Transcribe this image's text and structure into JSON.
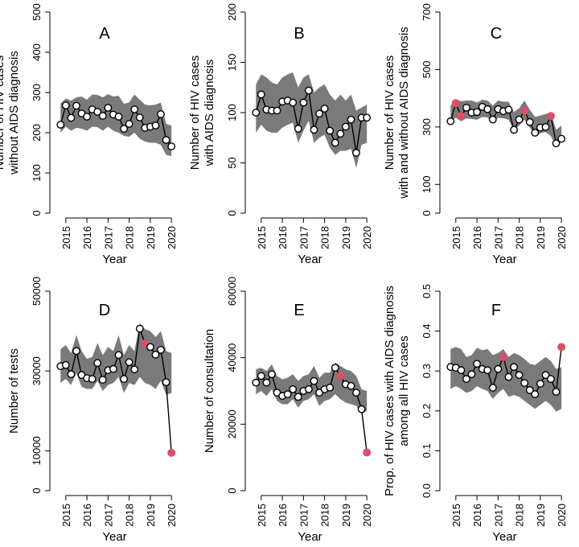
{
  "chart_data": [
    {
      "type": "line",
      "panel": "A",
      "ylabel": [
        "Number of HIV cases",
        "without AIDS diagnosis"
      ],
      "xlabel": "Year",
      "ylim": [
        0,
        500
      ],
      "yticks": [
        0,
        100,
        200,
        300,
        400,
        500
      ],
      "xticks": [
        2015,
        2016,
        2017,
        2018,
        2019,
        2020
      ],
      "x": [
        2014.75,
        2015.0,
        2015.25,
        2015.5,
        2015.75,
        2016.0,
        2016.25,
        2016.5,
        2016.75,
        2017.0,
        2017.25,
        2017.5,
        2017.75,
        2018.0,
        2018.25,
        2018.5,
        2018.75,
        2019.0,
        2019.25,
        2019.5,
        2019.75,
        2020.0
      ],
      "values": [
        220,
        268,
        237,
        267,
        248,
        240,
        258,
        252,
        242,
        262,
        245,
        240,
        210,
        222,
        258,
        238,
        212,
        215,
        218,
        246,
        182,
        166
      ],
      "band_upper": [
        272,
        285,
        280,
        288,
        290,
        282,
        295,
        294,
        288,
        296,
        290,
        292,
        272,
        275,
        295,
        282,
        270,
        268,
        270,
        275,
        222,
        218
      ],
      "band_lower": [
        200,
        215,
        205,
        212,
        210,
        205,
        215,
        214,
        205,
        215,
        205,
        200,
        192,
        190,
        200,
        185,
        178,
        175,
        175,
        170,
        145,
        142
      ],
      "highlight_x": []
    },
    {
      "type": "line",
      "panel": "B",
      "ylabel": [
        "Number of HIV cases",
        "with AIDS diagnosis"
      ],
      "xlabel": "Year",
      "ylim": [
        0,
        200
      ],
      "yticks": [
        0,
        50,
        100,
        150,
        200
      ],
      "xticks": [
        2015,
        2016,
        2017,
        2018,
        2019,
        2020
      ],
      "x": [
        2014.75,
        2015.0,
        2015.25,
        2015.5,
        2015.75,
        2016.0,
        2016.25,
        2016.5,
        2016.75,
        2017.0,
        2017.25,
        2017.5,
        2017.75,
        2018.0,
        2018.25,
        2018.5,
        2018.75,
        2019.0,
        2019.25,
        2019.5,
        2019.75,
        2020.0
      ],
      "values": [
        100,
        118,
        103,
        102,
        102,
        111,
        112,
        110,
        84,
        110,
        122,
        83,
        99,
        104,
        82,
        70,
        79,
        86,
        93,
        60,
        95,
        95
      ],
      "band_upper": [
        128,
        138,
        135,
        130,
        128,
        135,
        138,
        140,
        125,
        135,
        138,
        120,
        125,
        128,
        118,
        112,
        118,
        112,
        118,
        102,
        105,
        108
      ],
      "band_lower": [
        80,
        88,
        82,
        80,
        80,
        85,
        88,
        90,
        70,
        82,
        92,
        70,
        75,
        78,
        65,
        58,
        62,
        62,
        64,
        45,
        68,
        70
      ],
      "highlight_x": []
    },
    {
      "type": "line",
      "panel": "C",
      "ylabel": [
        "Number of HIV cases",
        "with and without AIDS diagnosis"
      ],
      "xlabel": "Year",
      "ylim": [
        0,
        700
      ],
      "yticks": [
        0,
        100,
        300,
        500,
        700
      ],
      "xticks": [
        2015,
        2016,
        2017,
        2018,
        2019,
        2020
      ],
      "x": [
        2014.75,
        2015.0,
        2015.25,
        2015.5,
        2015.75,
        2016.0,
        2016.25,
        2016.5,
        2016.75,
        2017.0,
        2017.25,
        2017.5,
        2017.75,
        2018.0,
        2018.25,
        2018.5,
        2018.75,
        2019.0,
        2019.25,
        2019.5,
        2019.75,
        2020.0
      ],
      "values": [
        320,
        383,
        338,
        367,
        350,
        352,
        370,
        362,
        326,
        362,
        355,
        360,
        290,
        326,
        357,
        317,
        280,
        298,
        300,
        338,
        243,
        259
      ],
      "band_upper": [
        375,
        395,
        390,
        392,
        392,
        385,
        395,
        392,
        375,
        392,
        388,
        388,
        352,
        365,
        392,
        360,
        335,
        340,
        345,
        350,
        290,
        305
      ],
      "band_lower": [
        318,
        332,
        320,
        330,
        328,
        325,
        335,
        333,
        315,
        332,
        330,
        325,
        288,
        305,
        325,
        298,
        270,
        278,
        282,
        268,
        232,
        250
      ],
      "highlight_x": [
        2015.0,
        2015.25,
        2018.25,
        2019.5
      ]
    },
    {
      "type": "line",
      "panel": "D",
      "ylabel": [
        "Number of tests"
      ],
      "xlabel": "Year",
      "ylim": [
        0,
        50000
      ],
      "yticks": [
        0,
        10000,
        30000,
        50000
      ],
      "xticks": [
        2015,
        2016,
        2017,
        2018,
        2019,
        2020
      ],
      "x": [
        2014.75,
        2015.0,
        2015.25,
        2015.5,
        2015.75,
        2016.0,
        2016.25,
        2016.5,
        2016.75,
        2017.0,
        2017.25,
        2017.5,
        2017.75,
        2018.0,
        2018.25,
        2018.5,
        2018.75,
        2019.0,
        2019.25,
        2019.5,
        2019.75,
        2020.0
      ],
      "values": [
        31200,
        31500,
        29200,
        35000,
        29000,
        28200,
        28000,
        32000,
        27800,
        30200,
        30500,
        34000,
        28000,
        32200,
        30400,
        40600,
        36900,
        36000,
        34100,
        35300,
        27200,
        9500
      ],
      "band_upper": [
        35500,
        36500,
        34500,
        39000,
        35000,
        33000,
        33500,
        37000,
        34000,
        36000,
        35000,
        39000,
        34000,
        36500,
        35000,
        42000,
        40500,
        40000,
        38500,
        40000,
        35000,
        34500
      ],
      "band_lower": [
        27000,
        28000,
        26500,
        29500,
        26000,
        25500,
        25500,
        27500,
        25000,
        26500,
        27000,
        28500,
        24500,
        27000,
        26500,
        28500,
        27000,
        26500,
        25500,
        27500,
        24000,
        24500
      ],
      "highlight_x": [
        2018.75,
        2020.0
      ]
    },
    {
      "type": "line",
      "panel": "E",
      "ylabel": [
        "Number of consultation"
      ],
      "xlabel": "Year",
      "ylim": [
        0,
        60000
      ],
      "yticks": [
        0,
        20000,
        40000,
        60000
      ],
      "xticks": [
        2015,
        2016,
        2017,
        2018,
        2019,
        2020
      ],
      "x": [
        2014.75,
        2015.0,
        2015.25,
        2015.5,
        2015.75,
        2016.0,
        2016.25,
        2016.5,
        2016.75,
        2017.0,
        2017.25,
        2017.5,
        2017.75,
        2018.0,
        2018.25,
        2018.5,
        2018.75,
        2019.0,
        2019.25,
        2019.5,
        2019.75,
        2020.0
      ],
      "values": [
        32500,
        34500,
        32500,
        35000,
        29500,
        28500,
        29000,
        30500,
        28200,
        30000,
        30500,
        33000,
        29500,
        30500,
        31000,
        37000,
        34500,
        32000,
        31500,
        29500,
        24500,
        11500
      ],
      "band_upper": [
        36500,
        37000,
        36000,
        38000,
        34500,
        33500,
        34000,
        35000,
        33000,
        34500,
        35000,
        37500,
        34000,
        35500,
        35500,
        38500,
        37500,
        36500,
        36000,
        34500,
        30500,
        30000
      ],
      "band_lower": [
        29000,
        30000,
        28500,
        30500,
        27000,
        26000,
        26000,
        27500,
        25000,
        27000,
        27500,
        29000,
        25500,
        27000,
        27500,
        29000,
        27500,
        26500,
        26000,
        25500,
        23000,
        24000
      ],
      "highlight_x": [
        2018.75,
        2020.0
      ]
    },
    {
      "type": "line",
      "panel": "F",
      "ylabel": [
        "Prop. of HIV cases with AIDS diagnosis",
        "among all HIV cases"
      ],
      "xlabel": "Year",
      "ylim": [
        0,
        0.5
      ],
      "yticks": [
        0.0,
        0.1,
        0.2,
        0.3,
        0.4,
        0.5
      ],
      "xticks": [
        2015,
        2016,
        2017,
        2018,
        2019,
        2020
      ],
      "x": [
        2014.75,
        2015.0,
        2015.25,
        2015.5,
        2015.75,
        2016.0,
        2016.25,
        2016.5,
        2016.75,
        2017.0,
        2017.25,
        2017.5,
        2017.75,
        2018.0,
        2018.25,
        2018.5,
        2018.75,
        2019.0,
        2019.25,
        2019.5,
        2019.75,
        2020.0
      ],
      "values": [
        0.31,
        0.308,
        0.302,
        0.28,
        0.292,
        0.318,
        0.305,
        0.302,
        0.258,
        0.305,
        0.335,
        0.285,
        0.31,
        0.29,
        0.27,
        0.252,
        0.242,
        0.268,
        0.29,
        0.28,
        0.248,
        0.36
      ],
      "band_upper": [
        0.355,
        0.36,
        0.355,
        0.335,
        0.34,
        0.358,
        0.352,
        0.355,
        0.34,
        0.345,
        0.355,
        0.335,
        0.345,
        0.34,
        0.33,
        0.318,
        0.315,
        0.325,
        0.335,
        0.325,
        0.305,
        0.31
      ],
      "band_lower": [
        0.255,
        0.262,
        0.255,
        0.245,
        0.25,
        0.262,
        0.255,
        0.25,
        0.23,
        0.245,
        0.255,
        0.235,
        0.24,
        0.235,
        0.225,
        0.215,
        0.205,
        0.215,
        0.225,
        0.215,
        0.198,
        0.205
      ],
      "highlight_x": [
        2017.25,
        2020.0
      ]
    }
  ],
  "colors": {
    "band": "#7a7a7a",
    "highlight": "#d9506a",
    "line": "#000000"
  }
}
